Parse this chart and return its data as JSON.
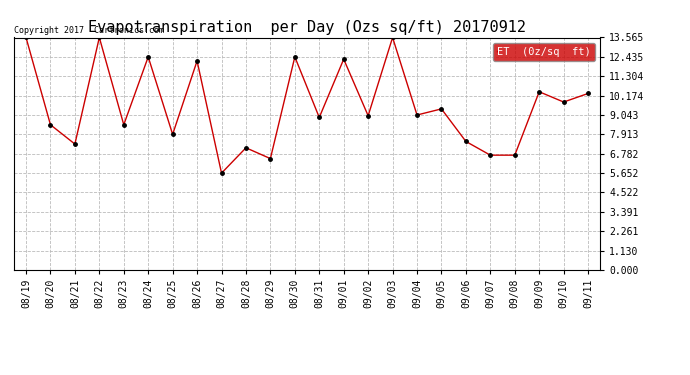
{
  "title": "Evapotranspiration  per Day (Ozs sq/ft) 20170912",
  "copyright_text": "Copyright 2017  Cartronics.com",
  "legend_label": "ET  (0z/sq  ft)",
  "x_labels": [
    "08/19",
    "08/20",
    "08/21",
    "08/22",
    "08/23",
    "08/24",
    "08/25",
    "08/26",
    "08/27",
    "08/28",
    "08/29",
    "08/30",
    "08/31",
    "09/01",
    "09/02",
    "09/03",
    "09/04",
    "09/05",
    "09/06",
    "09/07",
    "09/08",
    "09/09",
    "09/10",
    "09/11"
  ],
  "y_values": [
    13.565,
    8.474,
    7.348,
    13.565,
    8.474,
    12.435,
    7.913,
    12.2,
    5.652,
    7.13,
    6.5,
    12.435,
    8.9,
    12.3,
    9.0,
    13.565,
    9.043,
    9.4,
    7.5,
    6.7,
    6.7,
    10.4,
    9.8,
    10.3
  ],
  "y_ticks": [
    0.0,
    1.13,
    2.261,
    3.391,
    4.522,
    5.652,
    6.782,
    7.913,
    9.043,
    10.174,
    11.304,
    12.435,
    13.565
  ],
  "line_color": "#cc0000",
  "marker_color": "#000000",
  "legend_bg": "#cc0000",
  "legend_text_color": "#ffffff",
  "background_color": "#ffffff",
  "grid_color": "#bbbbbb",
  "title_fontsize": 11,
  "tick_fontsize": 7,
  "copyright_fontsize": 6,
  "legend_fontsize": 7.5,
  "ylim": [
    0.0,
    13.565
  ]
}
